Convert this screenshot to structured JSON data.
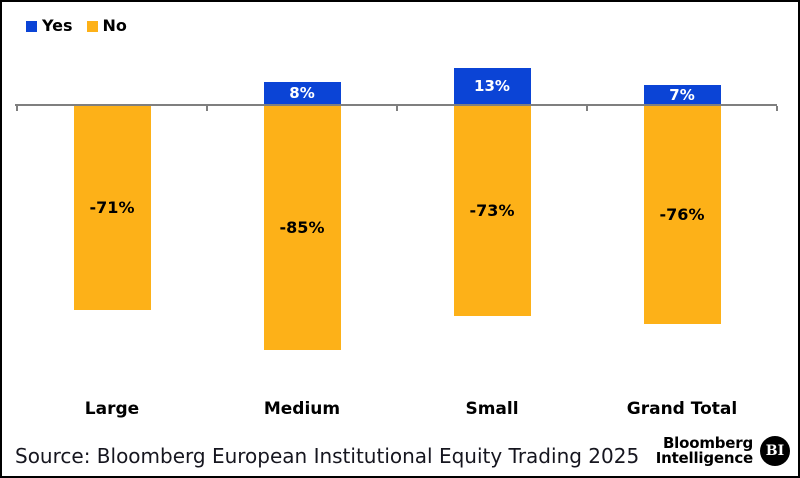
{
  "legend": {
    "items": [
      {
        "label": "Yes",
        "color": "#0b44d6"
      },
      {
        "label": "No",
        "color": "#fdb118"
      }
    ]
  },
  "chart_data": {
    "type": "bar",
    "stacked": true,
    "title": "",
    "xlabel": "",
    "ylabel": "",
    "categories": [
      "Large",
      "Medium",
      "Small",
      "Grand Total"
    ],
    "series": [
      {
        "name": "Yes",
        "color": "#0b44d6",
        "values": [
          0,
          8,
          13,
          7
        ],
        "labels": [
          "",
          "8%",
          "13%",
          "7%"
        ]
      },
      {
        "name": "No",
        "color": "#fdb118",
        "values": [
          -71,
          -85,
          -73,
          -76
        ],
        "labels": [
          "-71%",
          "-85%",
          "-73%",
          "-76%"
        ]
      }
    ],
    "ylim": [
      -100,
      20
    ],
    "grid": false,
    "legend_position": "top-left",
    "axis_color": "#7f7f7f"
  },
  "footer": {
    "source": "Source: Bloomberg European Institutional Equity Trading 2025",
    "brand_line1": "Bloomberg",
    "brand_line2": "Intelligence",
    "brand_badge": "BI"
  }
}
